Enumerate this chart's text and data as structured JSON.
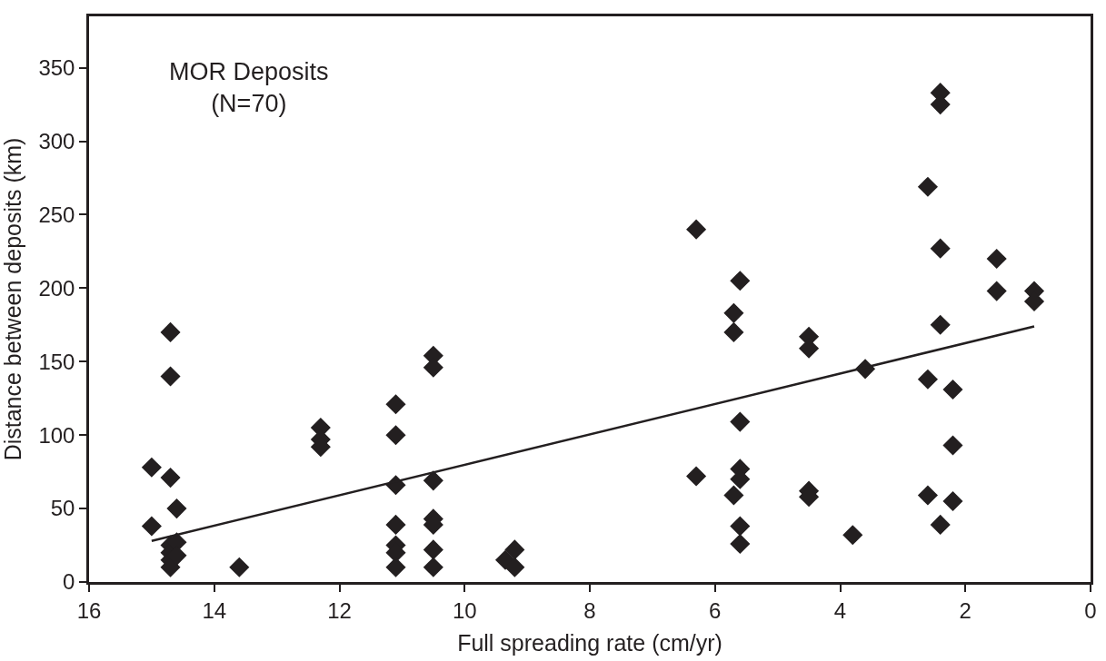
{
  "chart_data": {
    "type": "scatter",
    "xlabel": "Full spreading rate (cm/yr)",
    "ylabel": "Distance between deposits (km)",
    "annotations": [
      "MOR Deposits\n(N=70)"
    ],
    "xlim": [
      16,
      0
    ],
    "xticks": [
      16,
      14,
      12,
      10,
      8,
      6,
      4,
      2,
      0
    ],
    "ylim": [
      0,
      385
    ],
    "yticks": [
      0,
      50,
      100,
      150,
      200,
      250,
      300,
      350
    ],
    "grid": false,
    "legend": false,
    "marker": "diamond",
    "series": [
      {
        "color": "#231f20",
        "x": [
          15.0,
          15.0,
          14.7,
          14.7,
          14.7,
          14.7,
          14.7,
          14.7,
          14.7,
          14.6,
          14.6,
          14.6,
          13.6,
          12.3,
          12.3,
          12.3,
          11.1,
          11.1,
          11.1,
          11.1,
          11.1,
          11.1,
          11.1,
          10.5,
          10.5,
          10.5,
          10.5,
          10.5,
          10.5,
          10.5,
          9.35,
          9.2,
          9.2,
          6.3,
          6.3,
          5.7,
          5.7,
          5.7,
          5.6,
          5.6,
          5.6,
          5.6,
          5.6,
          5.6,
          4.5,
          4.5,
          4.5,
          4.5,
          3.8,
          3.6,
          2.6,
          2.6,
          2.6,
          2.4,
          2.4,
          2.4,
          2.4,
          2.4,
          2.2,
          2.2,
          2.2,
          1.5,
          1.5,
          0.9,
          0.9
        ],
        "values": [
          78,
          38,
          170,
          140,
          71,
          25,
          20,
          15,
          10,
          50,
          27,
          18,
          10,
          105,
          97,
          92,
          121,
          100,
          66,
          39,
          25,
          20,
          10,
          154,
          146,
          69,
          43,
          39,
          22,
          10,
          15,
          22,
          10,
          240,
          72,
          183,
          170,
          59,
          205,
          109,
          77,
          70,
          38,
          26,
          167,
          159,
          62,
          58,
          32,
          145,
          269,
          138,
          59,
          333,
          325,
          227,
          175,
          39,
          131,
          93,
          55,
          220,
          198,
          198,
          191
        ]
      },
      {
        "type": "line",
        "color": "#231f20",
        "x": [
          15.0,
          0.9
        ],
        "values": [
          28,
          174
        ],
        "marker": "none",
        "line_style": "solid"
      }
    ]
  }
}
